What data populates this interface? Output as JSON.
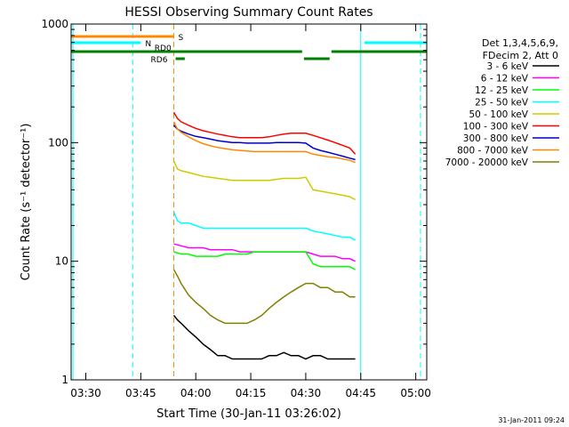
{
  "chart_data": {
    "type": "line",
    "title": "HESSI Observing Summary Count Rates",
    "xlabel": "Start Time (30-Jan-11 03:26:02)",
    "ylabel": "Count Rate (s⁻¹ detector⁻¹)",
    "y_scale": "log",
    "ylim": [
      1,
      1000
    ],
    "xlim_minutes": [
      0,
      97
    ],
    "x_ticks": [
      {
        "label": "03:30",
        "min": 4
      },
      {
        "label": "03:45",
        "min": 19
      },
      {
        "label": "04:00",
        "min": 34
      },
      {
        "label": "04:15",
        "min": 49
      },
      {
        "label": "04:30",
        "min": 64
      },
      {
        "label": "04:45",
        "min": 79
      },
      {
        "label": "05:00",
        "min": 94
      }
    ],
    "y_ticks": [
      {
        "label": "1",
        "value": 1
      },
      {
        "label": "10",
        "value": 10
      },
      {
        "label": "100",
        "value": 100
      },
      {
        "label": "1000",
        "value": 1000
      }
    ],
    "legend_header": [
      "Det 1,3,4,5,6,9,",
      "FDecim 2, Att 0"
    ],
    "legend_position": "right",
    "footer_date": "31-Jan-2011 09:24",
    "series": [
      {
        "name": "3 - 6 keV",
        "color": "#000000",
        "x": [
          28,
          29,
          30,
          32,
          34,
          36,
          38,
          40,
          42,
          44,
          46,
          48,
          50,
          52,
          54,
          56,
          58,
          60,
          62,
          64,
          66,
          68,
          70,
          72,
          74,
          76,
          77.5
        ],
        "y": [
          3.5,
          3.2,
          3.0,
          2.6,
          2.3,
          2.0,
          1.8,
          1.6,
          1.6,
          1.5,
          1.5,
          1.5,
          1.5,
          1.5,
          1.6,
          1.6,
          1.7,
          1.6,
          1.6,
          1.5,
          1.6,
          1.6,
          1.5,
          1.5,
          1.5,
          1.5,
          1.5
        ]
      },
      {
        "name": "6 - 12 keV",
        "color": "#ff00ff",
        "x": [
          28,
          30,
          32,
          34,
          36,
          38,
          40,
          42,
          44,
          46,
          48,
          50,
          52,
          54,
          56,
          58,
          60,
          62,
          64,
          66,
          68,
          70,
          72,
          74,
          76,
          77.5
        ],
        "y": [
          14,
          13.5,
          13,
          13,
          13,
          12.5,
          12.5,
          12.5,
          12.5,
          12,
          12,
          12,
          12,
          12,
          12,
          12,
          12,
          12,
          12,
          11.5,
          11,
          11,
          11,
          10.5,
          10.5,
          10
        ]
      },
      {
        "name": "12 - 25 keV",
        "color": "#00ff00",
        "x": [
          28,
          30,
          32,
          34,
          36,
          38,
          40,
          42,
          44,
          46,
          48,
          50,
          52,
          54,
          56,
          58,
          60,
          62,
          64,
          66,
          68,
          70,
          72,
          74,
          76,
          77.5
        ],
        "y": [
          12,
          11.5,
          11.5,
          11,
          11,
          11,
          11,
          11.5,
          11.5,
          11.5,
          11.5,
          12,
          12,
          12,
          12,
          12,
          12,
          12,
          12,
          9.5,
          9,
          9,
          9,
          9,
          9,
          8.5
        ]
      },
      {
        "name": "25 - 50 keV",
        "color": "#00ffff",
        "x": [
          28,
          29,
          30,
          32,
          34,
          36,
          38,
          40,
          42,
          44,
          46,
          48,
          50,
          52,
          54,
          56,
          58,
          60,
          62,
          64,
          66,
          68,
          70,
          72,
          74,
          76,
          77.5
        ],
        "y": [
          26,
          22,
          21,
          21,
          20,
          19,
          19,
          19,
          19,
          19,
          19,
          19,
          19,
          19,
          19,
          19,
          19,
          19,
          19,
          19,
          18,
          17.5,
          17,
          16.5,
          16,
          16,
          15
        ]
      },
      {
        "name": "50 - 100 keV",
        "color": "#cccc00",
        "x": [
          28,
          29,
          30,
          32,
          34,
          36,
          38,
          40,
          42,
          44,
          46,
          48,
          50,
          52,
          54,
          56,
          58,
          60,
          62,
          64,
          66,
          68,
          70,
          72,
          74,
          76,
          77.5
        ],
        "y": [
          70,
          60,
          58,
          56,
          54,
          52,
          51,
          50,
          49,
          48,
          48,
          48,
          48,
          48,
          48,
          49,
          50,
          50,
          50,
          51,
          40,
          39,
          38,
          37,
          36,
          35,
          33
        ]
      },
      {
        "name": "100 - 300 keV",
        "color": "#ff0000",
        "x": [
          28,
          29,
          30,
          32,
          34,
          36,
          38,
          40,
          42,
          44,
          46,
          48,
          50,
          52,
          54,
          56,
          58,
          60,
          62,
          64,
          66,
          68,
          70,
          72,
          74,
          76,
          77.5
        ],
        "y": [
          180,
          160,
          150,
          140,
          132,
          126,
          122,
          118,
          115,
          112,
          110,
          110,
          110,
          110,
          112,
          115,
          118,
          120,
          120,
          120,
          115,
          110,
          105,
          100,
          95,
          90,
          80
        ]
      },
      {
        "name": "300 - 800 keV",
        "color": "#0000cc",
        "x": [
          28,
          29,
          30,
          32,
          34,
          36,
          38,
          40,
          42,
          44,
          46,
          48,
          50,
          52,
          54,
          56,
          58,
          60,
          62,
          64,
          66,
          68,
          70,
          72,
          74,
          76,
          77.5
        ],
        "y": [
          140,
          130,
          125,
          118,
          113,
          110,
          107,
          104,
          102,
          100,
          100,
          99,
          99,
          99,
          99,
          100,
          100,
          100,
          100,
          99,
          90,
          86,
          83,
          80,
          77,
          74,
          72
        ]
      },
      {
        "name": "800 - 7000 keV",
        "color": "#ff8800",
        "x": [
          28,
          29,
          30,
          32,
          34,
          36,
          38,
          40,
          42,
          44,
          46,
          48,
          50,
          52,
          54,
          56,
          58,
          60,
          62,
          64,
          66,
          68,
          70,
          72,
          74,
          76,
          77.5
        ],
        "y": [
          150,
          130,
          122,
          112,
          104,
          98,
          94,
          91,
          89,
          87,
          86,
          85,
          84,
          84,
          84,
          84,
          84,
          84,
          84,
          84,
          80,
          78,
          76,
          75,
          73,
          71,
          68
        ]
      },
      {
        "name": "7000 - 20000 keV",
        "color": "#808000",
        "x": [
          28,
          29,
          30,
          32,
          34,
          36,
          38,
          40,
          42,
          44,
          46,
          48,
          50,
          52,
          54,
          56,
          58,
          60,
          62,
          64,
          66,
          68,
          70,
          72,
          74,
          76,
          77.5
        ],
        "y": [
          8.5,
          7.5,
          6.5,
          5.2,
          4.5,
          4.0,
          3.5,
          3.2,
          3.0,
          3.0,
          3.0,
          3.0,
          3.2,
          3.5,
          4.0,
          4.5,
          5.0,
          5.5,
          6.0,
          6.5,
          6.5,
          6.0,
          6.0,
          5.5,
          5.5,
          5.0,
          5.0
        ]
      }
    ],
    "flags": [
      {
        "label": "S",
        "color": "#ff8800",
        "segments": [
          [
            0,
            28
          ]
        ]
      },
      {
        "label": "N",
        "color": "#00ffff",
        "segments": [
          [
            0,
            19
          ],
          [
            80,
            97
          ]
        ]
      },
      {
        "label": "RD0",
        "color": "#008000",
        "segments": [
          [
            0,
            63
          ],
          [
            71,
            97
          ]
        ]
      },
      {
        "label": "RD6",
        "color": "#008000",
        "segments": [
          [
            28.5,
            31
          ],
          [
            63.5,
            70.5
          ]
        ]
      }
    ],
    "vertical_markers": [
      {
        "min": 0.5,
        "color": "#00ffff",
        "style": "solid"
      },
      {
        "min": 16.8,
        "color": "#00ffff",
        "style": "dashed"
      },
      {
        "min": 28.0,
        "color": "#ff8800",
        "style": "dashed"
      },
      {
        "min": 79.0,
        "color": "#00ffff",
        "style": "solid"
      },
      {
        "min": 95.3,
        "color": "#00ffff",
        "style": "dashed"
      }
    ]
  }
}
